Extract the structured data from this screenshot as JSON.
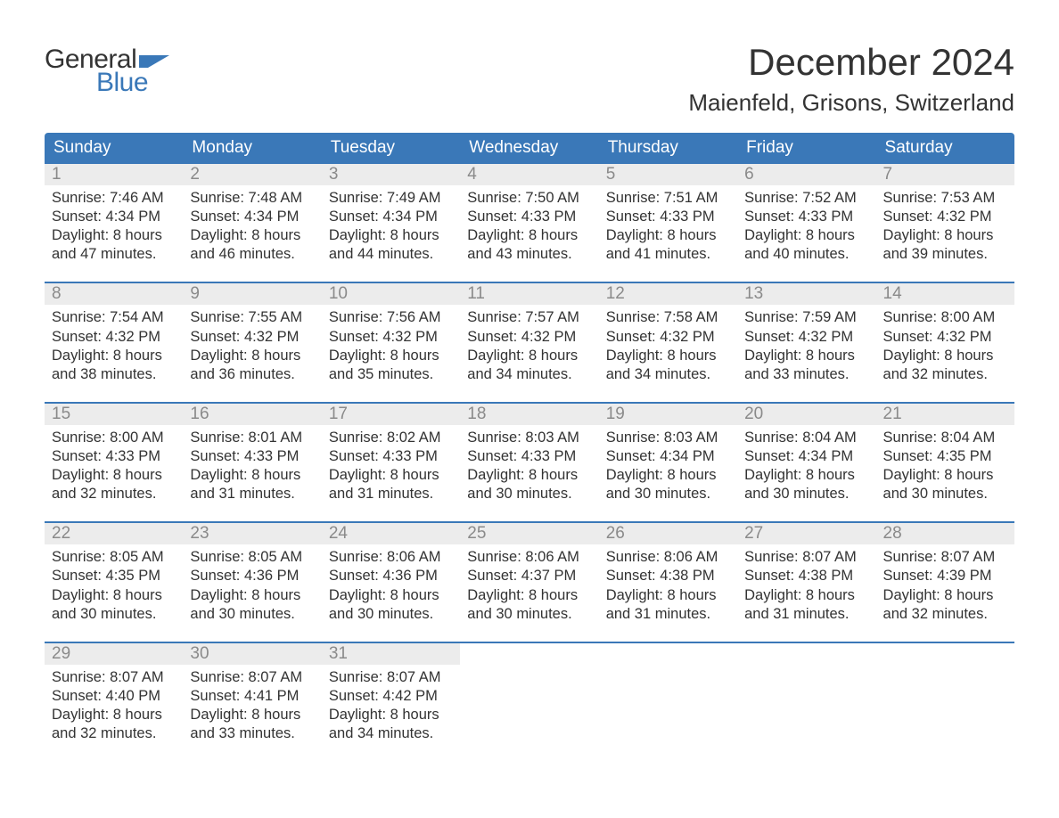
{
  "logo": {
    "general": "General",
    "blue": "Blue"
  },
  "title": "December 2024",
  "location": "Maienfeld, Grisons, Switzerland",
  "colors": {
    "brand_blue": "#3a78b8",
    "header_text": "#ffffff",
    "daynum_bg": "#ececec",
    "daynum_text": "#8a8a8a",
    "body_text": "#333333",
    "background": "#ffffff"
  },
  "day_names": [
    "Sunday",
    "Monday",
    "Tuesday",
    "Wednesday",
    "Thursday",
    "Friday",
    "Saturday"
  ],
  "weeks": [
    [
      {
        "num": "1",
        "sunrise": "Sunrise: 7:46 AM",
        "sunset": "Sunset: 4:34 PM",
        "dl1": "Daylight: 8 hours",
        "dl2": "and 47 minutes."
      },
      {
        "num": "2",
        "sunrise": "Sunrise: 7:48 AM",
        "sunset": "Sunset: 4:34 PM",
        "dl1": "Daylight: 8 hours",
        "dl2": "and 46 minutes."
      },
      {
        "num": "3",
        "sunrise": "Sunrise: 7:49 AM",
        "sunset": "Sunset: 4:34 PM",
        "dl1": "Daylight: 8 hours",
        "dl2": "and 44 minutes."
      },
      {
        "num": "4",
        "sunrise": "Sunrise: 7:50 AM",
        "sunset": "Sunset: 4:33 PM",
        "dl1": "Daylight: 8 hours",
        "dl2": "and 43 minutes."
      },
      {
        "num": "5",
        "sunrise": "Sunrise: 7:51 AM",
        "sunset": "Sunset: 4:33 PM",
        "dl1": "Daylight: 8 hours",
        "dl2": "and 41 minutes."
      },
      {
        "num": "6",
        "sunrise": "Sunrise: 7:52 AM",
        "sunset": "Sunset: 4:33 PM",
        "dl1": "Daylight: 8 hours",
        "dl2": "and 40 minutes."
      },
      {
        "num": "7",
        "sunrise": "Sunrise: 7:53 AM",
        "sunset": "Sunset: 4:32 PM",
        "dl1": "Daylight: 8 hours",
        "dl2": "and 39 minutes."
      }
    ],
    [
      {
        "num": "8",
        "sunrise": "Sunrise: 7:54 AM",
        "sunset": "Sunset: 4:32 PM",
        "dl1": "Daylight: 8 hours",
        "dl2": "and 38 minutes."
      },
      {
        "num": "9",
        "sunrise": "Sunrise: 7:55 AM",
        "sunset": "Sunset: 4:32 PM",
        "dl1": "Daylight: 8 hours",
        "dl2": "and 36 minutes."
      },
      {
        "num": "10",
        "sunrise": "Sunrise: 7:56 AM",
        "sunset": "Sunset: 4:32 PM",
        "dl1": "Daylight: 8 hours",
        "dl2": "and 35 minutes."
      },
      {
        "num": "11",
        "sunrise": "Sunrise: 7:57 AM",
        "sunset": "Sunset: 4:32 PM",
        "dl1": "Daylight: 8 hours",
        "dl2": "and 34 minutes."
      },
      {
        "num": "12",
        "sunrise": "Sunrise: 7:58 AM",
        "sunset": "Sunset: 4:32 PM",
        "dl1": "Daylight: 8 hours",
        "dl2": "and 34 minutes."
      },
      {
        "num": "13",
        "sunrise": "Sunrise: 7:59 AM",
        "sunset": "Sunset: 4:32 PM",
        "dl1": "Daylight: 8 hours",
        "dl2": "and 33 minutes."
      },
      {
        "num": "14",
        "sunrise": "Sunrise: 8:00 AM",
        "sunset": "Sunset: 4:32 PM",
        "dl1": "Daylight: 8 hours",
        "dl2": "and 32 minutes."
      }
    ],
    [
      {
        "num": "15",
        "sunrise": "Sunrise: 8:00 AM",
        "sunset": "Sunset: 4:33 PM",
        "dl1": "Daylight: 8 hours",
        "dl2": "and 32 minutes."
      },
      {
        "num": "16",
        "sunrise": "Sunrise: 8:01 AM",
        "sunset": "Sunset: 4:33 PM",
        "dl1": "Daylight: 8 hours",
        "dl2": "and 31 minutes."
      },
      {
        "num": "17",
        "sunrise": "Sunrise: 8:02 AM",
        "sunset": "Sunset: 4:33 PM",
        "dl1": "Daylight: 8 hours",
        "dl2": "and 31 minutes."
      },
      {
        "num": "18",
        "sunrise": "Sunrise: 8:03 AM",
        "sunset": "Sunset: 4:33 PM",
        "dl1": "Daylight: 8 hours",
        "dl2": "and 30 minutes."
      },
      {
        "num": "19",
        "sunrise": "Sunrise: 8:03 AM",
        "sunset": "Sunset: 4:34 PM",
        "dl1": "Daylight: 8 hours",
        "dl2": "and 30 minutes."
      },
      {
        "num": "20",
        "sunrise": "Sunrise: 8:04 AM",
        "sunset": "Sunset: 4:34 PM",
        "dl1": "Daylight: 8 hours",
        "dl2": "and 30 minutes."
      },
      {
        "num": "21",
        "sunrise": "Sunrise: 8:04 AM",
        "sunset": "Sunset: 4:35 PM",
        "dl1": "Daylight: 8 hours",
        "dl2": "and 30 minutes."
      }
    ],
    [
      {
        "num": "22",
        "sunrise": "Sunrise: 8:05 AM",
        "sunset": "Sunset: 4:35 PM",
        "dl1": "Daylight: 8 hours",
        "dl2": "and 30 minutes."
      },
      {
        "num": "23",
        "sunrise": "Sunrise: 8:05 AM",
        "sunset": "Sunset: 4:36 PM",
        "dl1": "Daylight: 8 hours",
        "dl2": "and 30 minutes."
      },
      {
        "num": "24",
        "sunrise": "Sunrise: 8:06 AM",
        "sunset": "Sunset: 4:36 PM",
        "dl1": "Daylight: 8 hours",
        "dl2": "and 30 minutes."
      },
      {
        "num": "25",
        "sunrise": "Sunrise: 8:06 AM",
        "sunset": "Sunset: 4:37 PM",
        "dl1": "Daylight: 8 hours",
        "dl2": "and 30 minutes."
      },
      {
        "num": "26",
        "sunrise": "Sunrise: 8:06 AM",
        "sunset": "Sunset: 4:38 PM",
        "dl1": "Daylight: 8 hours",
        "dl2": "and 31 minutes."
      },
      {
        "num": "27",
        "sunrise": "Sunrise: 8:07 AM",
        "sunset": "Sunset: 4:38 PM",
        "dl1": "Daylight: 8 hours",
        "dl2": "and 31 minutes."
      },
      {
        "num": "28",
        "sunrise": "Sunrise: 8:07 AM",
        "sunset": "Sunset: 4:39 PM",
        "dl1": "Daylight: 8 hours",
        "dl2": "and 32 minutes."
      }
    ],
    [
      {
        "num": "29",
        "sunrise": "Sunrise: 8:07 AM",
        "sunset": "Sunset: 4:40 PM",
        "dl1": "Daylight: 8 hours",
        "dl2": "and 32 minutes."
      },
      {
        "num": "30",
        "sunrise": "Sunrise: 8:07 AM",
        "sunset": "Sunset: 4:41 PM",
        "dl1": "Daylight: 8 hours",
        "dl2": "and 33 minutes."
      },
      {
        "num": "31",
        "sunrise": "Sunrise: 8:07 AM",
        "sunset": "Sunset: 4:42 PM",
        "dl1": "Daylight: 8 hours",
        "dl2": "and 34 minutes."
      },
      {
        "empty": true
      },
      {
        "empty": true
      },
      {
        "empty": true
      },
      {
        "empty": true
      }
    ]
  ]
}
